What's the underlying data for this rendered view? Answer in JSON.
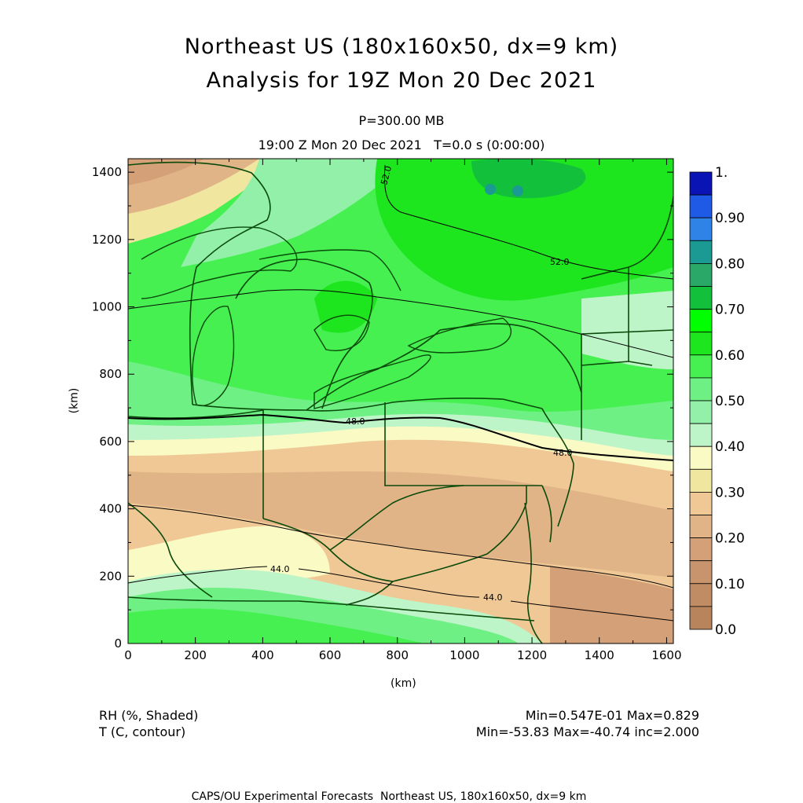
{
  "titles": {
    "line1": "Northeast US (180x160x50, dx=9 km)",
    "line2": "Analysis for 19Z Mon 20 Dec 2021",
    "level": "P=300.00 MB",
    "valid": "19:00 Z Mon 20 Dec 2021   T=0.0 s (0:00:00)"
  },
  "axes": {
    "x_label": "(km)",
    "y_label": "(km)",
    "x_ticks": [
      "0",
      "200",
      "400",
      "600",
      "800",
      "1000",
      "1200",
      "1400",
      "1600"
    ],
    "y_ticks": [
      "0",
      "200",
      "400",
      "600",
      "800",
      "1000",
      "1200",
      "1400"
    ],
    "x_range": [
      0,
      1620
    ],
    "y_range": [
      0,
      1440
    ]
  },
  "colorbar": {
    "labels": [
      "1.",
      "0.90",
      "0.80",
      "0.70",
      "0.60",
      "0.50",
      "0.40",
      "0.30",
      "0.20",
      "0.10",
      "0.0"
    ],
    "colors": [
      "#0a14b4",
      "#1e5ae6",
      "#2f82e6",
      "#1a9a92",
      "#2aa868",
      "#12c03c",
      "#00ff00",
      "#1ee61e",
      "#46f050",
      "#6ef084",
      "#92f0a8",
      "#bef5c8",
      "#fafac4",
      "#f0e6a0",
      "#f0c896",
      "#e0b487",
      "#d4a078",
      "#c8946e",
      "#c08c64",
      "#b8845c"
    ]
  },
  "contours": {
    "labels": [
      "52.0",
      "52.0",
      "48.0",
      "48.0",
      "44.0",
      "44.0"
    ]
  },
  "footer": {
    "left1": "RH (%, Shaded)",
    "left2": "T (C, contour)",
    "right1": "Min=0.547E-01 Max=0.829",
    "right2": "Min=-53.83 Max=-40.74 inc=2.000",
    "credit": "CAPS/OU Experimental Forecasts  Northeast US, 180x160x50, dx=9 km"
  }
}
